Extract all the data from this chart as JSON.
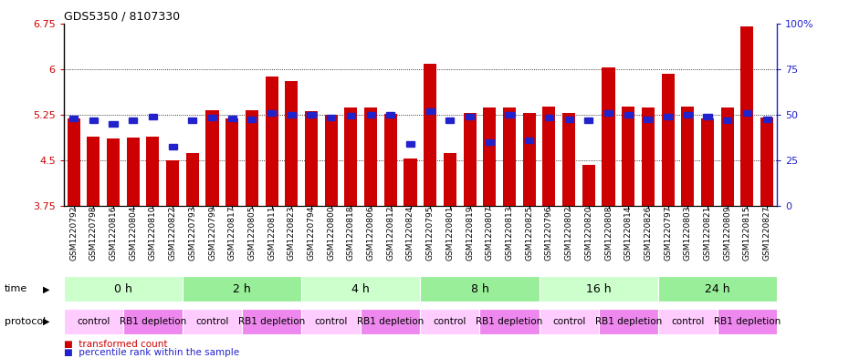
{
  "title": "GDS5350 / 8107330",
  "samples": [
    "GSM1220792",
    "GSM1220798",
    "GSM1220816",
    "GSM1220804",
    "GSM1220810",
    "GSM1220822",
    "GSM1220793",
    "GSM1220799",
    "GSM1220817",
    "GSM1220805",
    "GSM1220811",
    "GSM1220823",
    "GSM1220794",
    "GSM1220800",
    "GSM1220818",
    "GSM1220806",
    "GSM1220812",
    "GSM1220824",
    "GSM1220795",
    "GSM1220801",
    "GSM1220819",
    "GSM1220807",
    "GSM1220813",
    "GSM1220825",
    "GSM1220796",
    "GSM1220802",
    "GSM1220820",
    "GSM1220808",
    "GSM1220814",
    "GSM1220826",
    "GSM1220797",
    "GSM1220803",
    "GSM1220821",
    "GSM1220809",
    "GSM1220815",
    "GSM1220827"
  ],
  "bar_values": [
    5.18,
    4.88,
    4.85,
    4.87,
    4.88,
    4.5,
    4.62,
    5.32,
    5.18,
    5.32,
    5.88,
    5.8,
    5.3,
    5.25,
    5.37,
    5.37,
    5.26,
    4.53,
    6.08,
    4.62,
    5.27,
    5.37,
    5.37,
    5.27,
    5.38,
    5.27,
    4.42,
    6.02,
    5.38,
    5.37,
    5.92,
    5.38,
    5.18,
    5.37,
    6.7,
    5.2
  ],
  "percentile_values": [
    5.18,
    5.15,
    5.1,
    5.15,
    5.22,
    4.72,
    5.15,
    5.2,
    5.18,
    5.17,
    5.27,
    5.25,
    5.25,
    5.2,
    5.23,
    5.24,
    5.25,
    4.77,
    5.3,
    5.15,
    5.22,
    4.8,
    5.25,
    4.82,
    5.2,
    5.17,
    5.15,
    5.27,
    5.25,
    5.17,
    5.22,
    5.25,
    5.22,
    5.15,
    5.27,
    5.17
  ],
  "ylim_min": 3.75,
  "ylim_max": 6.75,
  "yticks": [
    3.75,
    4.5,
    5.25,
    6.0,
    6.75
  ],
  "ytick_labels": [
    "3.75",
    "4.5",
    "5.25",
    "6",
    "6.75"
  ],
  "bar_color": "#cc0000",
  "percentile_color": "#2222cc",
  "time_groups": [
    {
      "label": "0 h",
      "start": 0,
      "end": 6,
      "color": "#ccffcc"
    },
    {
      "label": "2 h",
      "start": 6,
      "end": 12,
      "color": "#99ee99"
    },
    {
      "label": "4 h",
      "start": 12,
      "end": 18,
      "color": "#ccffcc"
    },
    {
      "label": "8 h",
      "start": 18,
      "end": 24,
      "color": "#99ee99"
    },
    {
      "label": "16 h",
      "start": 24,
      "end": 30,
      "color": "#ccffcc"
    },
    {
      "label": "24 h",
      "start": 30,
      "end": 36,
      "color": "#99ee99"
    }
  ],
  "protocol_groups": [
    {
      "label": "control",
      "start": 0,
      "end": 3,
      "color": "#ffccff"
    },
    {
      "label": "RB1 depletion",
      "start": 3,
      "end": 6,
      "color": "#ee88ee"
    },
    {
      "label": "control",
      "start": 6,
      "end": 9,
      "color": "#ffccff"
    },
    {
      "label": "RB1 depletion",
      "start": 9,
      "end": 12,
      "color": "#ee88ee"
    },
    {
      "label": "control",
      "start": 12,
      "end": 15,
      "color": "#ffccff"
    },
    {
      "label": "RB1 depletion",
      "start": 15,
      "end": 18,
      "color": "#ee88ee"
    },
    {
      "label": "control",
      "start": 18,
      "end": 21,
      "color": "#ffccff"
    },
    {
      "label": "RB1 depletion",
      "start": 21,
      "end": 24,
      "color": "#ee88ee"
    },
    {
      "label": "control",
      "start": 24,
      "end": 27,
      "color": "#ffccff"
    },
    {
      "label": "RB1 depletion",
      "start": 27,
      "end": 30,
      "color": "#ee88ee"
    },
    {
      "label": "control",
      "start": 30,
      "end": 33,
      "color": "#ffccff"
    },
    {
      "label": "RB1 depletion",
      "start": 33,
      "end": 36,
      "color": "#ee88ee"
    }
  ],
  "legend_transformed": "transformed count",
  "legend_percentile": "percentile rank within the sample",
  "right_ytick_labels": [
    "0",
    "25",
    "50",
    "75",
    "100%"
  ],
  "right_ytick_vals": [
    0,
    25,
    50,
    75,
    100
  ]
}
